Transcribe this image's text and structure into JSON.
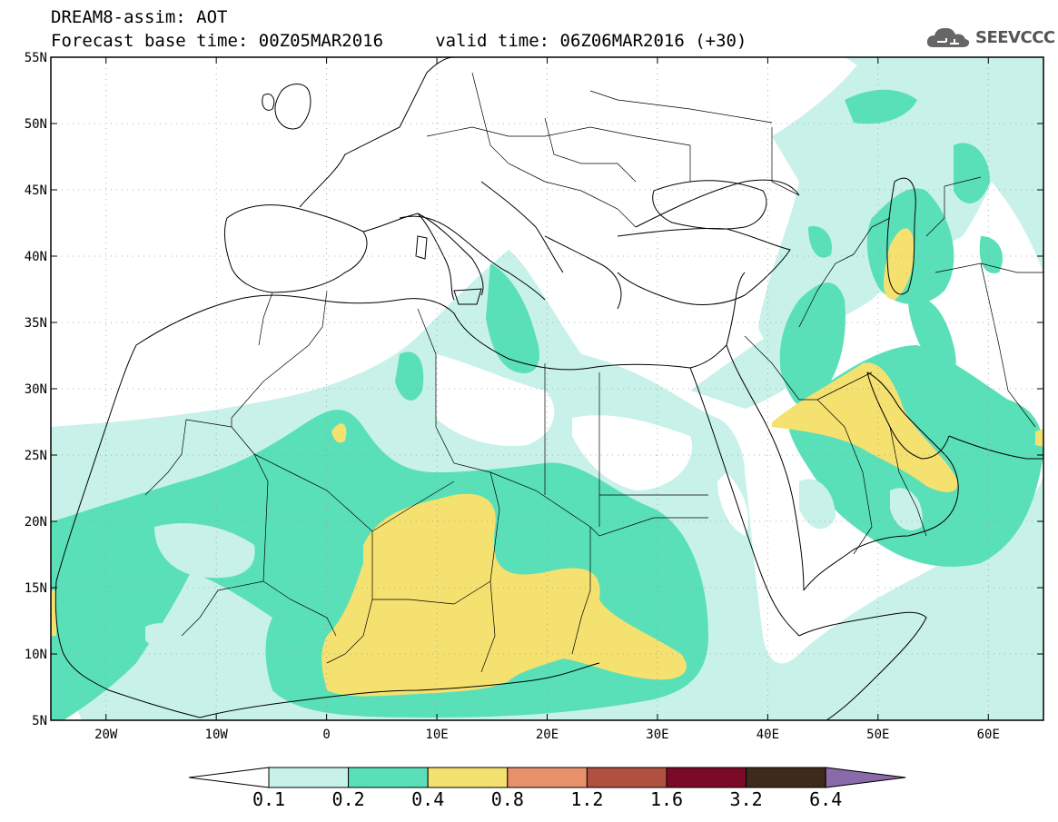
{
  "title": {
    "line1": "DREAM8-assim: AOT",
    "line2": "Forecast base time: 00Z05MAR2016     valid time: 06Z06MAR2016 (+30)"
  },
  "logo": {
    "text": "SEEVCCC",
    "icon": "cloud-icon"
  },
  "axes": {
    "lon_range": [
      -25,
      65
    ],
    "lat_range": [
      5,
      55
    ],
    "lon_ticks": [
      {
        "value": -20,
        "label": "20W"
      },
      {
        "value": -10,
        "label": "10W"
      },
      {
        "value": 0,
        "label": "0"
      },
      {
        "value": 10,
        "label": "10E"
      },
      {
        "value": 20,
        "label": "20E"
      },
      {
        "value": 30,
        "label": "30E"
      },
      {
        "value": 40,
        "label": "40E"
      },
      {
        "value": 50,
        "label": "50E"
      },
      {
        "value": 60,
        "label": "60E"
      }
    ],
    "lat_ticks": [
      {
        "value": 5,
        "label": "5N"
      },
      {
        "value": 10,
        "label": "10N"
      },
      {
        "value": 15,
        "label": "15N"
      },
      {
        "value": 20,
        "label": "20N"
      },
      {
        "value": 25,
        "label": "25N"
      },
      {
        "value": 30,
        "label": "30N"
      },
      {
        "value": 35,
        "label": "35N"
      },
      {
        "value": 40,
        "label": "40N"
      },
      {
        "value": 45,
        "label": "45N"
      },
      {
        "value": 50,
        "label": "50N"
      },
      {
        "value": 55,
        "label": "55N"
      }
    ],
    "grid": true
  },
  "colorbar": {
    "levels": [
      "0.1",
      "0.2",
      "0.4",
      "0.8",
      "1.2",
      "1.6",
      "3.2",
      "6.4"
    ],
    "colors": [
      "#ffffff",
      "#c8f1ea",
      "#5ae0b8",
      "#f5e170",
      "#e8906a",
      "#b0503e",
      "#7a0a28",
      "#3d2a1a",
      "#8a6aa8"
    ]
  },
  "colors": {
    "c01": "#c8f1ea",
    "c02": "#5ae0b8",
    "c04": "#f5e170"
  }
}
